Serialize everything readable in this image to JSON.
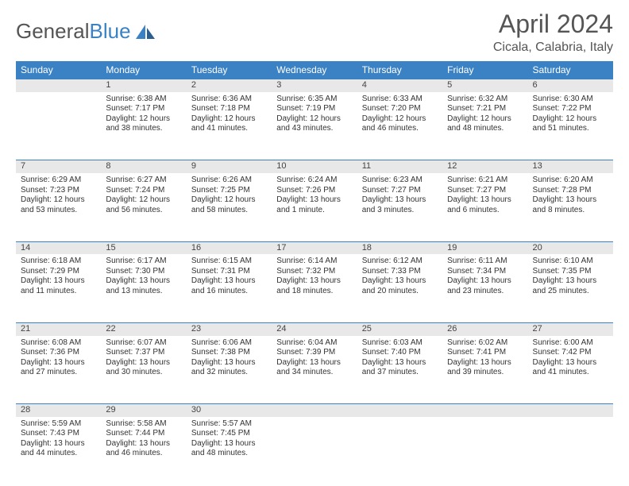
{
  "logo": {
    "text1": "General",
    "text2": "Blue"
  },
  "title": "April 2024",
  "location": "Cicala, Calabria, Italy",
  "colors": {
    "header_bg": "#3b82c4",
    "daynum_bg": "#e8e8e8",
    "row_border": "#3b82c4",
    "text": "#333333",
    "title_color": "#555555"
  },
  "days": [
    "Sunday",
    "Monday",
    "Tuesday",
    "Wednesday",
    "Thursday",
    "Friday",
    "Saturday"
  ],
  "weeks": [
    [
      null,
      {
        "n": "1",
        "sr": "Sunrise: 6:38 AM",
        "ss": "Sunset: 7:17 PM",
        "d1": "Daylight: 12 hours",
        "d2": "and 38 minutes."
      },
      {
        "n": "2",
        "sr": "Sunrise: 6:36 AM",
        "ss": "Sunset: 7:18 PM",
        "d1": "Daylight: 12 hours",
        "d2": "and 41 minutes."
      },
      {
        "n": "3",
        "sr": "Sunrise: 6:35 AM",
        "ss": "Sunset: 7:19 PM",
        "d1": "Daylight: 12 hours",
        "d2": "and 43 minutes."
      },
      {
        "n": "4",
        "sr": "Sunrise: 6:33 AM",
        "ss": "Sunset: 7:20 PM",
        "d1": "Daylight: 12 hours",
        "d2": "and 46 minutes."
      },
      {
        "n": "5",
        "sr": "Sunrise: 6:32 AM",
        "ss": "Sunset: 7:21 PM",
        "d1": "Daylight: 12 hours",
        "d2": "and 48 minutes."
      },
      {
        "n": "6",
        "sr": "Sunrise: 6:30 AM",
        "ss": "Sunset: 7:22 PM",
        "d1": "Daylight: 12 hours",
        "d2": "and 51 minutes."
      }
    ],
    [
      {
        "n": "7",
        "sr": "Sunrise: 6:29 AM",
        "ss": "Sunset: 7:23 PM",
        "d1": "Daylight: 12 hours",
        "d2": "and 53 minutes."
      },
      {
        "n": "8",
        "sr": "Sunrise: 6:27 AM",
        "ss": "Sunset: 7:24 PM",
        "d1": "Daylight: 12 hours",
        "d2": "and 56 minutes."
      },
      {
        "n": "9",
        "sr": "Sunrise: 6:26 AM",
        "ss": "Sunset: 7:25 PM",
        "d1": "Daylight: 12 hours",
        "d2": "and 58 minutes."
      },
      {
        "n": "10",
        "sr": "Sunrise: 6:24 AM",
        "ss": "Sunset: 7:26 PM",
        "d1": "Daylight: 13 hours",
        "d2": "and 1 minute."
      },
      {
        "n": "11",
        "sr": "Sunrise: 6:23 AM",
        "ss": "Sunset: 7:27 PM",
        "d1": "Daylight: 13 hours",
        "d2": "and 3 minutes."
      },
      {
        "n": "12",
        "sr": "Sunrise: 6:21 AM",
        "ss": "Sunset: 7:27 PM",
        "d1": "Daylight: 13 hours",
        "d2": "and 6 minutes."
      },
      {
        "n": "13",
        "sr": "Sunrise: 6:20 AM",
        "ss": "Sunset: 7:28 PM",
        "d1": "Daylight: 13 hours",
        "d2": "and 8 minutes."
      }
    ],
    [
      {
        "n": "14",
        "sr": "Sunrise: 6:18 AM",
        "ss": "Sunset: 7:29 PM",
        "d1": "Daylight: 13 hours",
        "d2": "and 11 minutes."
      },
      {
        "n": "15",
        "sr": "Sunrise: 6:17 AM",
        "ss": "Sunset: 7:30 PM",
        "d1": "Daylight: 13 hours",
        "d2": "and 13 minutes."
      },
      {
        "n": "16",
        "sr": "Sunrise: 6:15 AM",
        "ss": "Sunset: 7:31 PM",
        "d1": "Daylight: 13 hours",
        "d2": "and 16 minutes."
      },
      {
        "n": "17",
        "sr": "Sunrise: 6:14 AM",
        "ss": "Sunset: 7:32 PM",
        "d1": "Daylight: 13 hours",
        "d2": "and 18 minutes."
      },
      {
        "n": "18",
        "sr": "Sunrise: 6:12 AM",
        "ss": "Sunset: 7:33 PM",
        "d1": "Daylight: 13 hours",
        "d2": "and 20 minutes."
      },
      {
        "n": "19",
        "sr": "Sunrise: 6:11 AM",
        "ss": "Sunset: 7:34 PM",
        "d1": "Daylight: 13 hours",
        "d2": "and 23 minutes."
      },
      {
        "n": "20",
        "sr": "Sunrise: 6:10 AM",
        "ss": "Sunset: 7:35 PM",
        "d1": "Daylight: 13 hours",
        "d2": "and 25 minutes."
      }
    ],
    [
      {
        "n": "21",
        "sr": "Sunrise: 6:08 AM",
        "ss": "Sunset: 7:36 PM",
        "d1": "Daylight: 13 hours",
        "d2": "and 27 minutes."
      },
      {
        "n": "22",
        "sr": "Sunrise: 6:07 AM",
        "ss": "Sunset: 7:37 PM",
        "d1": "Daylight: 13 hours",
        "d2": "and 30 minutes."
      },
      {
        "n": "23",
        "sr": "Sunrise: 6:06 AM",
        "ss": "Sunset: 7:38 PM",
        "d1": "Daylight: 13 hours",
        "d2": "and 32 minutes."
      },
      {
        "n": "24",
        "sr": "Sunrise: 6:04 AM",
        "ss": "Sunset: 7:39 PM",
        "d1": "Daylight: 13 hours",
        "d2": "and 34 minutes."
      },
      {
        "n": "25",
        "sr": "Sunrise: 6:03 AM",
        "ss": "Sunset: 7:40 PM",
        "d1": "Daylight: 13 hours",
        "d2": "and 37 minutes."
      },
      {
        "n": "26",
        "sr": "Sunrise: 6:02 AM",
        "ss": "Sunset: 7:41 PM",
        "d1": "Daylight: 13 hours",
        "d2": "and 39 minutes."
      },
      {
        "n": "27",
        "sr": "Sunrise: 6:00 AM",
        "ss": "Sunset: 7:42 PM",
        "d1": "Daylight: 13 hours",
        "d2": "and 41 minutes."
      }
    ],
    [
      {
        "n": "28",
        "sr": "Sunrise: 5:59 AM",
        "ss": "Sunset: 7:43 PM",
        "d1": "Daylight: 13 hours",
        "d2": "and 44 minutes."
      },
      {
        "n": "29",
        "sr": "Sunrise: 5:58 AM",
        "ss": "Sunset: 7:44 PM",
        "d1": "Daylight: 13 hours",
        "d2": "and 46 minutes."
      },
      {
        "n": "30",
        "sr": "Sunrise: 5:57 AM",
        "ss": "Sunset: 7:45 PM",
        "d1": "Daylight: 13 hours",
        "d2": "and 48 minutes."
      },
      null,
      null,
      null,
      null
    ]
  ]
}
